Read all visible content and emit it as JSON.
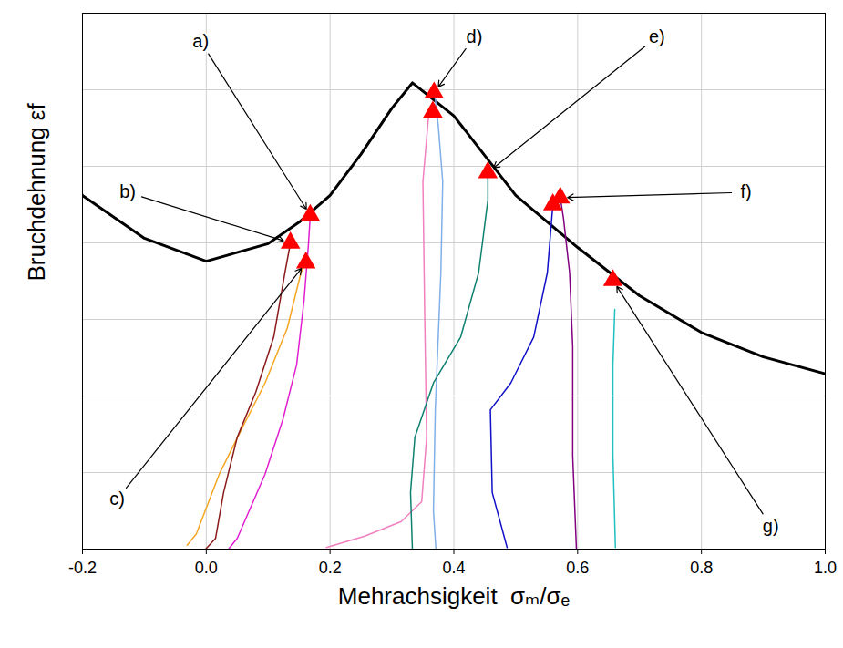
{
  "chart_data": {
    "type": "line",
    "x_label": "Mehrachsigkeit  σₘ/σₑ",
    "y_label": "Bruchdehnung εf",
    "xlim": [
      -0.2,
      1.0
    ],
    "ylim": [
      0,
      0.7
    ],
    "xticks": [
      -0.2,
      {
        "value": 0,
        "label": "0.0"
      },
      0.2,
      0.4,
      0.6,
      0.8,
      {
        "value": 1,
        "label": "1.0"
      }
    ],
    "yticks": [
      0,
      0.1,
      0.2,
      0.3,
      0.4,
      0.5,
      0.6,
      0.7
    ],
    "tick_labels": "x",
    "grid": true,
    "series": [
      {
        "type": "line",
        "color": "#000000",
        "line_style": "solid",
        "x": [
          -0.22,
          -0.2,
          -0.1,
          0.0,
          0.1,
          0.15,
          0.2,
          0.25,
          0.3,
          0.333,
          0.4,
          0.5,
          0.6,
          0.7,
          0.8,
          0.9,
          1.0,
          1.02
        ],
        "values": [
          0.49,
          0.462,
          0.406,
          0.376,
          0.399,
          0.427,
          0.462,
          0.516,
          0.576,
          0.609,
          0.566,
          0.462,
          0.394,
          0.331,
          0.283,
          0.251,
          0.229,
          0.226
        ]
      },
      {
        "type": "line",
        "color": "#f5a623",
        "line_style": "solid",
        "x": [
          -0.031,
          -0.016,
          0.021,
          0.058,
          0.095,
          0.131,
          0.153,
          0.161
        ],
        "values": [
          0.005,
          0.02,
          0.098,
          0.158,
          0.217,
          0.289,
          0.361,
          0.374
        ]
      },
      {
        "type": "line",
        "color": "#8b1a1a",
        "line_style": "solid",
        "x": [
          -0.001,
          0.015,
          0.028,
          0.05,
          0.08,
          0.109,
          0.127,
          0.136
        ],
        "values": [
          0,
          0.014,
          0.074,
          0.146,
          0.205,
          0.277,
          0.361,
          0.4
        ]
      },
      {
        "type": "line",
        "color": "#e020d0",
        "line_style": "solid",
        "x": [
          0.036,
          0.05,
          0.095,
          0.124,
          0.146,
          0.158,
          0.165,
          0.168
        ],
        "values": [
          0,
          0.014,
          0.098,
          0.17,
          0.241,
          0.325,
          0.397,
          0.436
        ]
      },
      {
        "type": "line",
        "color": "#f080c0",
        "line_style": "solid",
        "x": [
          0.194,
          0.256,
          0.315,
          0.348,
          0.356,
          0.353,
          0.35,
          0.359,
          0.366
        ],
        "values": [
          0.002,
          0.017,
          0.036,
          0.062,
          0.146,
          0.301,
          0.48,
          0.564,
          0.571
        ]
      },
      {
        "type": "line",
        "color": "#80b0e8",
        "line_style": "solid",
        "x": [
          0.371,
          0.367,
          0.37,
          0.379,
          0.382,
          0.375,
          0.369
        ],
        "values": [
          0,
          0.05,
          0.182,
          0.361,
          0.48,
          0.552,
          0.596
        ]
      },
      {
        "type": "line",
        "color": "#108070",
        "line_style": "solid",
        "x": [
          0.333,
          0.33,
          0.337,
          0.367,
          0.411,
          0.44,
          0.455,
          0.455
        ],
        "values": [
          0,
          0.074,
          0.146,
          0.217,
          0.277,
          0.361,
          0.456,
          0.492
        ]
      },
      {
        "type": "line",
        "color": "#1010c8",
        "line_style": "solid",
        "x": [
          0.486,
          0.462,
          0.459,
          0.492,
          0.529,
          0.551,
          0.56
        ],
        "values": [
          0.002,
          0.074,
          0.182,
          0.217,
          0.277,
          0.361,
          0.45
        ]
      },
      {
        "type": "line",
        "color": "#800080",
        "line_style": "solid",
        "x": [
          0.598,
          0.592,
          0.592,
          0.587,
          0.577,
          0.572
        ],
        "values": [
          0,
          0.122,
          0.265,
          0.361,
          0.433,
          0.459
        ]
      },
      {
        "type": "line",
        "color": "#20c0c0",
        "line_style": "solid",
        "x": [
          0.661,
          0.657,
          0.657,
          0.66
        ],
        "values": [
          0.002,
          0.122,
          0.241,
          0.313
        ]
      },
      {
        "type": "scatter",
        "color": "#ff0000",
        "marker": "triangle",
        "x": [
          0.136,
          0.168,
          0.161,
          0.368,
          0.366,
          0.455,
          0.56,
          0.572,
          0.657
        ],
        "values": [
          0.4,
          0.436,
          0.374,
          0.596,
          0.571,
          0.492,
          0.45,
          0.459,
          0.351
        ]
      }
    ],
    "annotations": [
      {
        "text": "a)",
        "x": -0.009,
        "y": 0.663,
        "target": [
          0.168,
          0.436
        ]
      },
      {
        "text": "b)",
        "x": -0.127,
        "y": 0.466,
        "target": [
          0.136,
          0.4
        ]
      },
      {
        "text": "c)",
        "x": -0.144,
        "y": 0.065,
        "target": [
          0.161,
          0.374
        ]
      },
      {
        "text": "d)",
        "x": 0.433,
        "y": 0.669,
        "target": [
          0.368,
          0.596
        ]
      },
      {
        "text": "e)",
        "x": 0.728,
        "y": 0.669,
        "target": [
          0.455,
          0.492
        ]
      },
      {
        "text": "f)",
        "x": 0.872,
        "y": 0.466,
        "target": [
          0.572,
          0.459
        ]
      },
      {
        "text": "g)",
        "x": 0.912,
        "y": 0.03,
        "target": [
          0.657,
          0.351
        ]
      }
    ]
  }
}
